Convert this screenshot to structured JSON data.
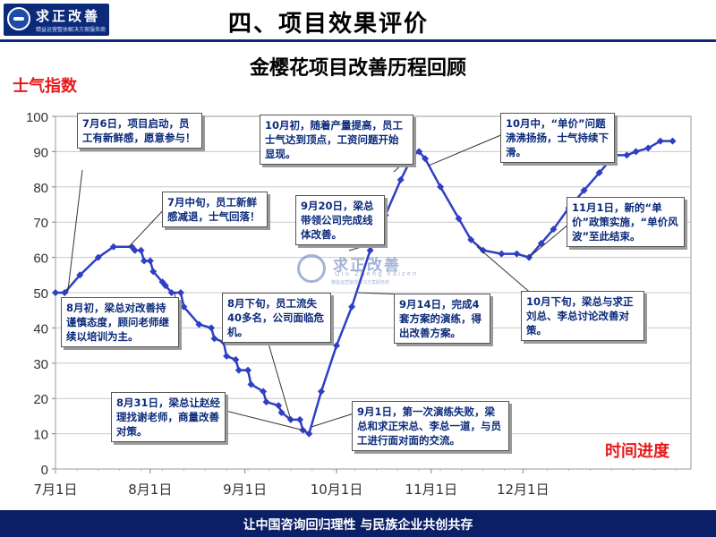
{
  "header": {
    "logo_name": "求正改善",
    "logo_tagline": "精益运营整体解决方案服务商",
    "page_title": "四、项目效果评价"
  },
  "watermark": {
    "name": "求正改善",
    "pinyin": "Qiu Zheng kaizen",
    "tagline": "精益运营整体解决方案服务商"
  },
  "footer": {
    "slogan": "让中国咨询回归理性 与民族企业共创共存"
  },
  "colors": {
    "line": "#2e3fc4",
    "accent_red": "#e8191b",
    "navy": "#0b1f66",
    "note_text": "#0b2a7a"
  },
  "chart_data": {
    "type": "line",
    "title": "金樱花项目改善历程回顾",
    "ylabel": "士气指数",
    "xlabel": "时间进度",
    "ylim": [
      0,
      100
    ],
    "yticks": [
      0,
      10,
      20,
      30,
      40,
      50,
      60,
      70,
      80,
      90,
      100
    ],
    "xticks": [
      "7月1日",
      "8月1日",
      "9月1日",
      "10月1日",
      "11月1日",
      "12月1日"
    ],
    "grid": true,
    "x_unit": "days from 7月1日",
    "series": [
      {
        "name": "",
        "marker": "diamond",
        "points": [
          [
            0,
            50
          ],
          [
            3,
            50
          ],
          [
            8,
            55
          ],
          [
            14,
            60
          ],
          [
            19,
            63
          ],
          [
            25,
            63
          ],
          [
            26,
            62
          ],
          [
            28,
            62
          ],
          [
            29,
            59
          ],
          [
            31,
            59
          ],
          [
            32,
            56
          ],
          [
            35,
            53
          ],
          [
            36,
            52
          ],
          [
            38,
            50
          ],
          [
            41,
            50
          ],
          [
            42,
            46
          ],
          [
            47,
            41
          ],
          [
            51,
            40
          ],
          [
            52,
            37
          ],
          [
            55,
            36
          ],
          [
            56,
            32
          ],
          [
            59,
            31
          ],
          [
            60,
            28
          ],
          [
            63,
            28
          ],
          [
            64,
            24
          ],
          [
            68,
            22
          ],
          [
            69,
            19
          ],
          [
            73,
            18
          ],
          [
            74,
            16
          ],
          [
            77,
            14
          ],
          [
            80,
            14
          ],
          [
            81,
            11
          ],
          [
            83,
            10
          ],
          [
            87,
            22
          ],
          [
            92,
            35
          ],
          [
            97,
            46
          ],
          [
            103,
            62
          ],
          [
            108,
            72
          ],
          [
            113,
            82
          ],
          [
            117,
            89
          ],
          [
            119,
            90
          ],
          [
            121,
            88
          ],
          [
            126,
            80
          ],
          [
            132,
            71
          ],
          [
            136,
            65
          ],
          [
            140,
            62
          ],
          [
            146,
            61
          ],
          [
            151,
            61
          ],
          [
            155,
            60
          ],
          [
            159,
            64
          ],
          [
            163,
            68
          ],
          [
            168,
            74
          ],
          [
            173,
            79
          ],
          [
            178,
            84
          ],
          [
            183,
            89
          ],
          [
            187,
            89
          ],
          [
            190,
            90
          ],
          [
            194,
            91
          ],
          [
            198,
            93
          ],
          [
            202,
            93
          ]
        ]
      }
    ],
    "annotations": [
      {
        "text": "7月6日，项目启动，员工有新鲜感，愿意参与！"
      },
      {
        "text": "7月中旬，员工新鲜感减退，士气回落！"
      },
      {
        "text": "8月初，梁总对改善持谨慎态度，顾问老师继续以培训为主。"
      },
      {
        "text": "8月下旬，员工流失40多名，公司面临危机。"
      },
      {
        "text": "8月31日，梁总让赵经理找谢老师，商量改善对策。"
      },
      {
        "text": "9月20日，梁总带领公司完成线体改善。"
      },
      {
        "text": "9月14日，完成4套方案的演练，得出改善方案。"
      },
      {
        "text": "9月1日，第一次演练失败，梁总和求正宋总、李总一道，与员工进行面对面的交流。"
      },
      {
        "text": "10月初，随着产量提高，员工士气达到顶点，工资问题开始显现。"
      },
      {
        "text": "10月中，“单价”问题沸沸扬扬，士气持续下滑。"
      },
      {
        "text": "11月1日，新的“单价”政策实施，“单价风波”至此结束。"
      },
      {
        "text": "10月下旬，梁总与求正刘总、李总讨论改善对策。"
      }
    ]
  }
}
